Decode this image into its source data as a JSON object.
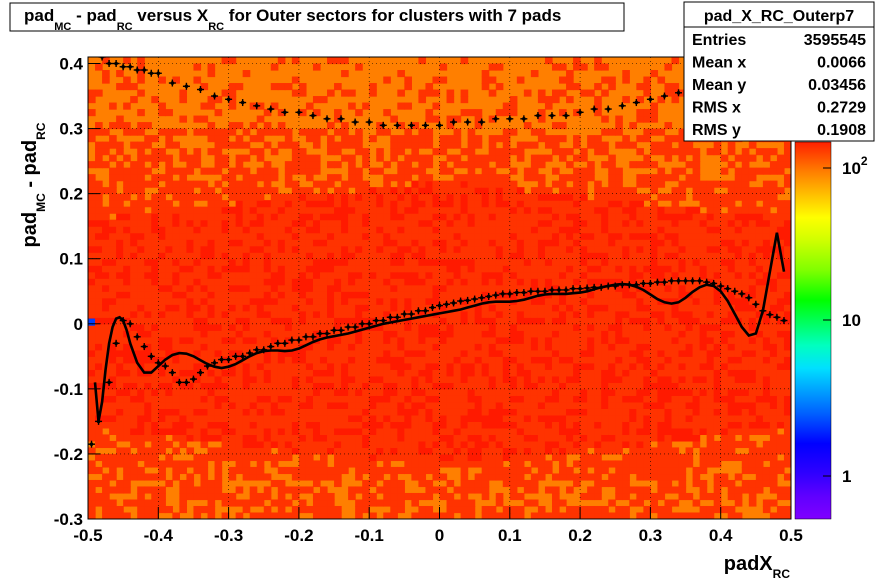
{
  "title": {
    "part1": "pad",
    "sub1": "MC",
    "part2": " - pad",
    "sub2": "RC",
    "part3": " versus X",
    "sub3": "RC",
    "part4": " for Outer sectors for clusters with 7 pads"
  },
  "stats_box": {
    "name": "pad_X_RC_Outerp7",
    "rows": [
      {
        "label": "Entries",
        "value": "3595545"
      },
      {
        "label": "Mean x",
        "value": "0.0066"
      },
      {
        "label": "Mean y",
        "value": "0.03456"
      },
      {
        "label": "RMS x",
        "value": "0.2729"
      },
      {
        "label": "RMS y",
        "value": "0.1908"
      }
    ]
  },
  "x_axis": {
    "label_main": "padX",
    "label_sub": "RC",
    "ticks": [
      "-0.5",
      "-0.4",
      "-0.3",
      "-0.2",
      "-0.1",
      "0",
      "0.1",
      "0.2",
      "0.3",
      "0.4",
      "0.5"
    ],
    "range": [
      -0.5,
      0.5
    ]
  },
  "y_axis": {
    "label_part1": "pad",
    "label_sub1": "MC",
    "label_part2": " - pad",
    "label_sub2": "RC",
    "ticks": [
      "-0.3",
      "-0.2",
      "-0.1",
      "0",
      "0.1",
      "0.2",
      "0.3",
      "0.4"
    ],
    "range": [
      -0.3,
      0.41
    ]
  },
  "z_axis": {
    "scale": "log",
    "labels": [
      {
        "text": "1",
        "value": 1
      },
      {
        "text": "10",
        "value": 10
      },
      {
        "text": "10",
        "sup": "2",
        "value": 100
      }
    ]
  },
  "chart_data": {
    "type": "heatmap",
    "x_range": [
      -0.5,
      0.5
    ],
    "y_range": [
      -0.3,
      0.41
    ],
    "z_scale": "log",
    "colors": {
      "band_outer": "#ff7f00",
      "band_inner": "#ff3300",
      "core": "#ff1a00",
      "low_bin": "#0040ff"
    },
    "profile_points": {
      "x": [
        -0.495,
        -0.485,
        -0.47,
        -0.46,
        -0.45,
        -0.44,
        -0.43,
        -0.42,
        -0.41,
        -0.4,
        -0.39,
        -0.38,
        -0.37,
        -0.36,
        -0.35,
        -0.34,
        -0.33,
        -0.32,
        -0.31,
        -0.3,
        -0.29,
        -0.28,
        -0.27,
        -0.26,
        -0.25,
        -0.24,
        -0.23,
        -0.22,
        -0.21,
        -0.2,
        -0.19,
        -0.18,
        -0.17,
        -0.16,
        -0.15,
        -0.14,
        -0.13,
        -0.12,
        -0.11,
        -0.1,
        -0.09,
        -0.08,
        -0.07,
        -0.06,
        -0.05,
        -0.04,
        -0.03,
        -0.02,
        -0.01,
        0,
        0.01,
        0.02,
        0.03,
        0.04,
        0.05,
        0.06,
        0.07,
        0.08,
        0.09,
        0.1,
        0.11,
        0.12,
        0.13,
        0.14,
        0.15,
        0.16,
        0.17,
        0.18,
        0.19,
        0.2,
        0.21,
        0.22,
        0.23,
        0.24,
        0.25,
        0.26,
        0.27,
        0.28,
        0.29,
        0.3,
        0.31,
        0.32,
        0.33,
        0.34,
        0.35,
        0.36,
        0.37,
        0.38,
        0.39,
        0.4,
        0.41,
        0.42,
        0.43,
        0.44,
        0.45,
        0.46,
        0.47,
        0.48,
        0.49
      ],
      "y": [
        -0.185,
        -0.15,
        -0.09,
        -0.03,
        0.005,
        0.0,
        -0.02,
        -0.035,
        -0.05,
        -0.06,
        -0.065,
        -0.075,
        -0.09,
        -0.09,
        -0.085,
        -0.075,
        -0.065,
        -0.06,
        -0.055,
        -0.055,
        -0.05,
        -0.05,
        -0.045,
        -0.04,
        -0.04,
        -0.035,
        -0.03,
        -0.03,
        -0.025,
        -0.025,
        -0.02,
        -0.02,
        -0.015,
        -0.015,
        -0.01,
        -0.01,
        -0.005,
        -0.005,
        0.0,
        0.0,
        0.005,
        0.005,
        0.01,
        0.01,
        0.015,
        0.015,
        0.02,
        0.02,
        0.025,
        0.028,
        0.03,
        0.032,
        0.035,
        0.036,
        0.038,
        0.04,
        0.042,
        0.044,
        0.046,
        0.046,
        0.048,
        0.048,
        0.05,
        0.05,
        0.05,
        0.052,
        0.052,
        0.052,
        0.054,
        0.054,
        0.055,
        0.056,
        0.056,
        0.058,
        0.058,
        0.06,
        0.06,
        0.06,
        0.062,
        0.062,
        0.064,
        0.064,
        0.066,
        0.066,
        0.066,
        0.066,
        0.066,
        0.064,
        0.062,
        0.058,
        0.054,
        0.05,
        0.046,
        0.04,
        0.03,
        0.02,
        0.014,
        0.01,
        0.005
      ]
    },
    "upper_points": {
      "x": [
        -0.48,
        -0.47,
        -0.46,
        -0.45,
        -0.44,
        -0.43,
        -0.42,
        -0.41,
        -0.4,
        -0.38,
        -0.36,
        -0.34,
        -0.32,
        -0.3,
        -0.28,
        -0.26,
        -0.24,
        -0.22,
        -0.2,
        -0.18,
        -0.16,
        -0.14,
        -0.12,
        -0.1,
        -0.08,
        -0.06,
        -0.04,
        -0.02,
        0,
        0.02,
        0.04,
        0.06,
        0.08,
        0.1,
        0.12,
        0.14,
        0.16,
        0.18,
        0.2,
        0.22,
        0.24,
        0.26,
        0.28,
        0.3,
        0.32,
        0.34,
        0.36,
        0.38,
        0.4,
        0.42,
        0.44,
        0.46,
        0.48
      ],
      "y": [
        0.41,
        0.4,
        0.4,
        0.395,
        0.395,
        0.39,
        0.39,
        0.385,
        0.385,
        0.37,
        0.365,
        0.36,
        0.35,
        0.345,
        0.34,
        0.335,
        0.33,
        0.325,
        0.325,
        0.32,
        0.315,
        0.315,
        0.31,
        0.31,
        0.305,
        0.305,
        0.305,
        0.305,
        0.305,
        0.31,
        0.31,
        0.31,
        0.315,
        0.315,
        0.315,
        0.32,
        0.32,
        0.32,
        0.325,
        0.33,
        0.33,
        0.335,
        0.34,
        0.345,
        0.35,
        0.355,
        0.36,
        0.365,
        0.37,
        0.375,
        0.38,
        0.385,
        0.39
      ]
    },
    "fit_curve": {
      "x": [
        -0.49,
        -0.485,
        -0.48,
        -0.475,
        -0.47,
        -0.465,
        -0.46,
        -0.455,
        -0.45,
        -0.445,
        -0.44,
        -0.43,
        -0.42,
        -0.41,
        -0.4,
        -0.39,
        -0.38,
        -0.37,
        -0.36,
        -0.35,
        -0.34,
        -0.33,
        -0.32,
        -0.31,
        -0.3,
        -0.29,
        -0.28,
        -0.27,
        -0.26,
        -0.25,
        -0.24,
        -0.23,
        -0.22,
        -0.21,
        -0.2,
        -0.19,
        -0.18,
        -0.17,
        -0.16,
        -0.15,
        -0.14,
        -0.13,
        -0.12,
        -0.11,
        -0.1,
        -0.09,
        -0.08,
        -0.07,
        -0.06,
        -0.05,
        -0.04,
        -0.03,
        -0.02,
        -0.01,
        0,
        0.01,
        0.02,
        0.03,
        0.04,
        0.05,
        0.06,
        0.07,
        0.08,
        0.09,
        0.1,
        0.11,
        0.12,
        0.13,
        0.14,
        0.15,
        0.16,
        0.17,
        0.18,
        0.19,
        0.2,
        0.21,
        0.22,
        0.23,
        0.24,
        0.25,
        0.26,
        0.27,
        0.28,
        0.29,
        0.3,
        0.31,
        0.32,
        0.33,
        0.34,
        0.35,
        0.36,
        0.37,
        0.38,
        0.39,
        0.4,
        0.41,
        0.42,
        0.43,
        0.44,
        0.45,
        0.46,
        0.47,
        0.48,
        0.49
      ],
      "y": [
        -0.09,
        -0.15,
        -0.12,
        -0.07,
        -0.03,
        -0.005,
        0.008,
        0.01,
        0.005,
        -0.01,
        -0.03,
        -0.06,
        -0.075,
        -0.075,
        -0.065,
        -0.055,
        -0.048,
        -0.045,
        -0.046,
        -0.05,
        -0.056,
        -0.062,
        -0.066,
        -0.068,
        -0.066,
        -0.062,
        -0.056,
        -0.05,
        -0.045,
        -0.042,
        -0.041,
        -0.041,
        -0.042,
        -0.041,
        -0.038,
        -0.033,
        -0.028,
        -0.024,
        -0.021,
        -0.019,
        -0.017,
        -0.015,
        -0.012,
        -0.009,
        -0.006,
        -0.003,
        0.0,
        0.002,
        0.004,
        0.006,
        0.008,
        0.01,
        0.012,
        0.014,
        0.016,
        0.018,
        0.02,
        0.022,
        0.025,
        0.028,
        0.031,
        0.033,
        0.034,
        0.034,
        0.034,
        0.035,
        0.037,
        0.04,
        0.043,
        0.045,
        0.046,
        0.046,
        0.046,
        0.047,
        0.048,
        0.05,
        0.053,
        0.056,
        0.058,
        0.06,
        0.061,
        0.06,
        0.057,
        0.052,
        0.045,
        0.038,
        0.033,
        0.031,
        0.033,
        0.04,
        0.049,
        0.056,
        0.06,
        0.058,
        0.05,
        0.035,
        0.015,
        -0.005,
        -0.018,
        -0.015,
        0.02,
        0.08,
        0.14,
        0.08
      ]
    }
  }
}
